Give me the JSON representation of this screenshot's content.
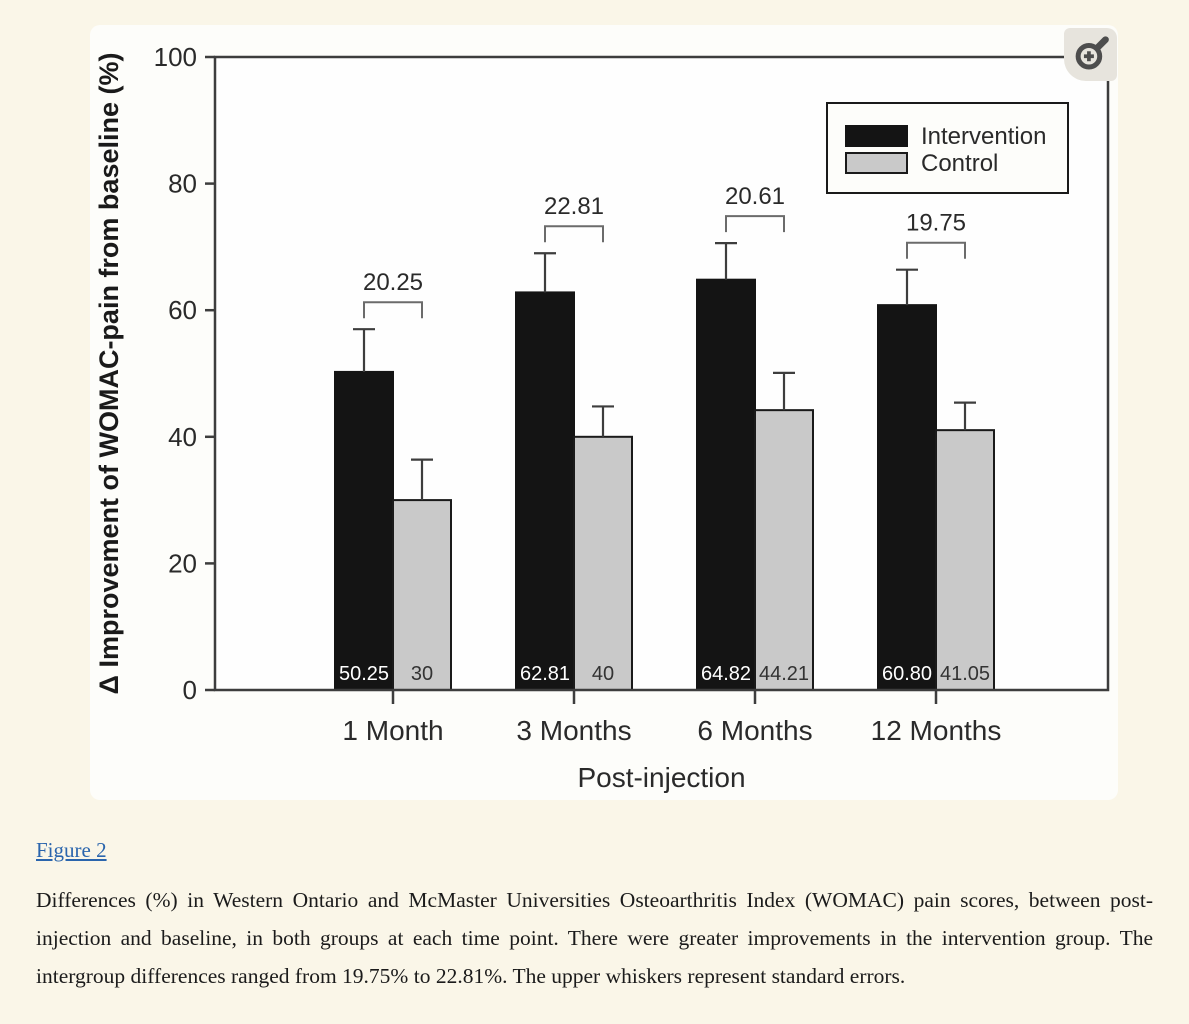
{
  "page": {
    "background": "#faf6e8"
  },
  "figure": {
    "link_label": "Figure 2",
    "caption": "Differences (%) in Western Ontario and McMaster Universities Osteoarthritis Index (WOMAC) pain scores, between post-injection and baseline, in both groups at each time point. There were greater improvements in the intervention group. The intergroup differences ranged from 19.75% to 22.81%. The upper whiskers represent standard errors.",
    "zoom_icon": "magnifier-plus-icon"
  },
  "chart_data": {
    "type": "bar",
    "title": "",
    "xlabel": "Post-injection",
    "ylabel": "Δ Improvement of WOMAC-pain from baseline (%)",
    "categories": [
      "1 Month",
      "3 Months",
      "6 Months",
      "12 Months"
    ],
    "series": [
      {
        "name": "Intervention",
        "color": "#141414",
        "values": [
          50.25,
          62.81,
          64.82,
          60.8
        ],
        "value_labels": [
          "50.25",
          "62.81",
          "64.82",
          "60.80"
        ],
        "whisker_tops": [
          57,
          69,
          70.6,
          66.4
        ]
      },
      {
        "name": "Control",
        "color": "#c9c9c9",
        "values": [
          30,
          40,
          44.21,
          41.05
        ],
        "value_labels": [
          "30",
          "40",
          "44.21",
          "41.05"
        ],
        "whisker_tops": [
          36.4,
          44.8,
          50.1,
          45.4
        ]
      }
    ],
    "diff_labels": [
      "20.25",
      "22.81",
      "20.61",
      "19.75"
    ],
    "ylim": [
      0,
      100
    ],
    "yticks": [
      0,
      20,
      40,
      60,
      80,
      100
    ],
    "legend": {
      "position": "top-right",
      "entries": [
        "Intervention",
        "Control"
      ]
    },
    "grid": false,
    "error_bars": "upper standard errors",
    "colors": {
      "axis": "#3d3d3d",
      "bracket": "#6b6b6b",
      "text": "#2a2a2a",
      "bar_label_on_dark": "#ffffff",
      "bar_label_on_light": "#333333"
    }
  }
}
